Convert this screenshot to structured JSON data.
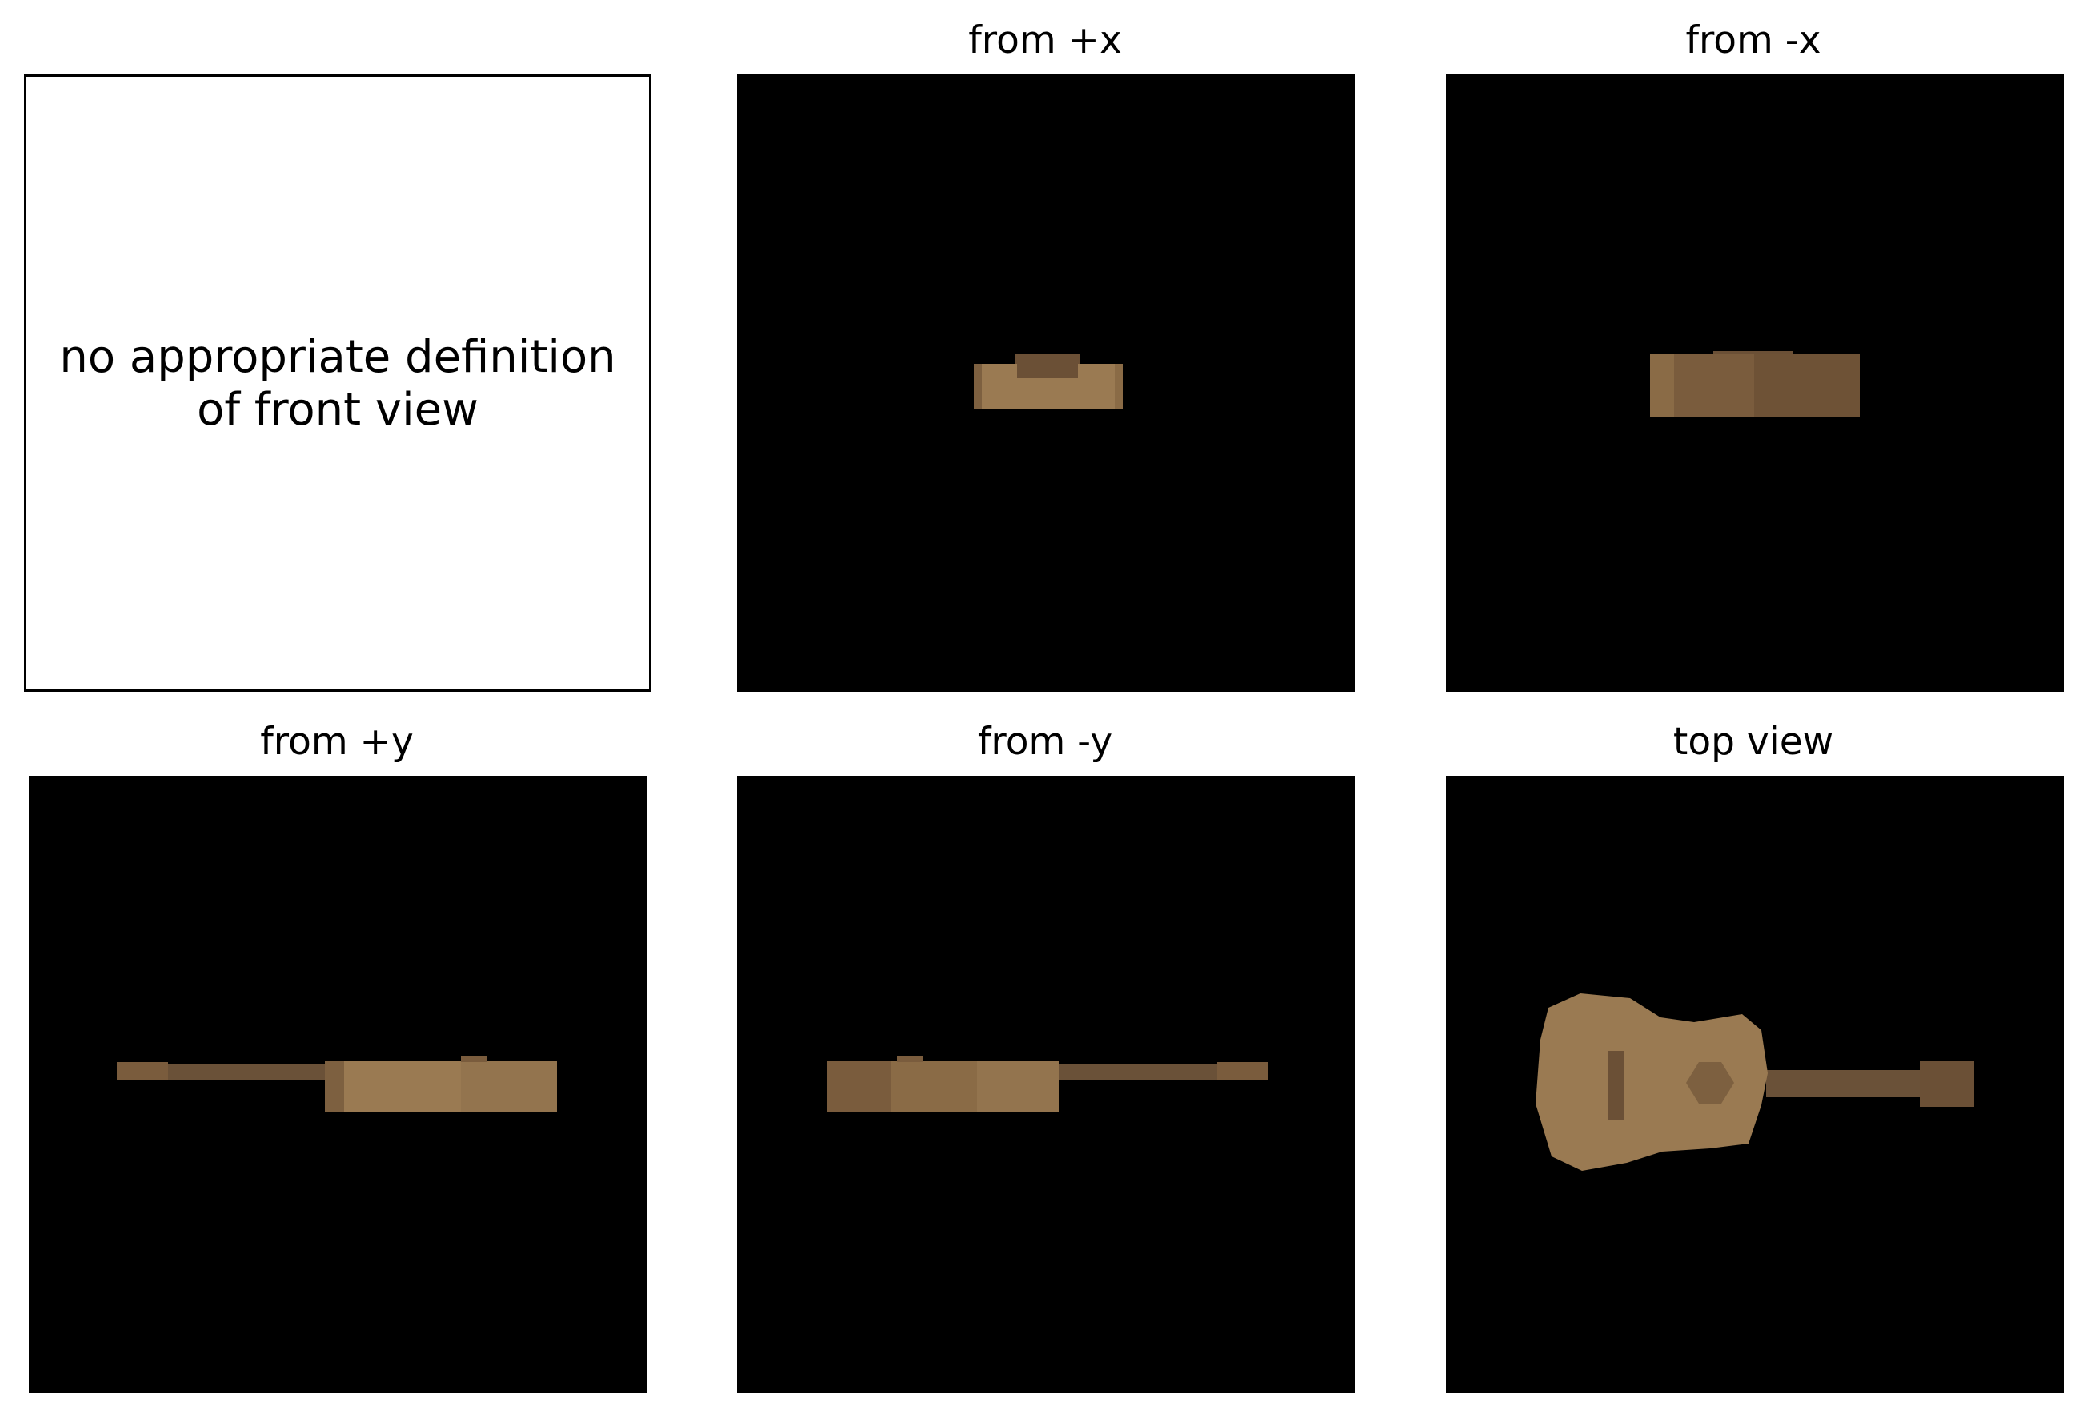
{
  "panels": {
    "front": {
      "message": "no appropriate definition\nof front view"
    },
    "plus_x": {
      "title": "from +x"
    },
    "minus_x": {
      "title": "from -x"
    },
    "plus_y": {
      "title": "from +y"
    },
    "minus_y": {
      "title": "from -y"
    },
    "top": {
      "title": "top view"
    }
  },
  "colors": {
    "background": "#000000",
    "wood_light": "#9a7a52",
    "wood_mid": "#8a6b46",
    "wood_dark": "#6b5036",
    "neck": "#6a5138"
  }
}
